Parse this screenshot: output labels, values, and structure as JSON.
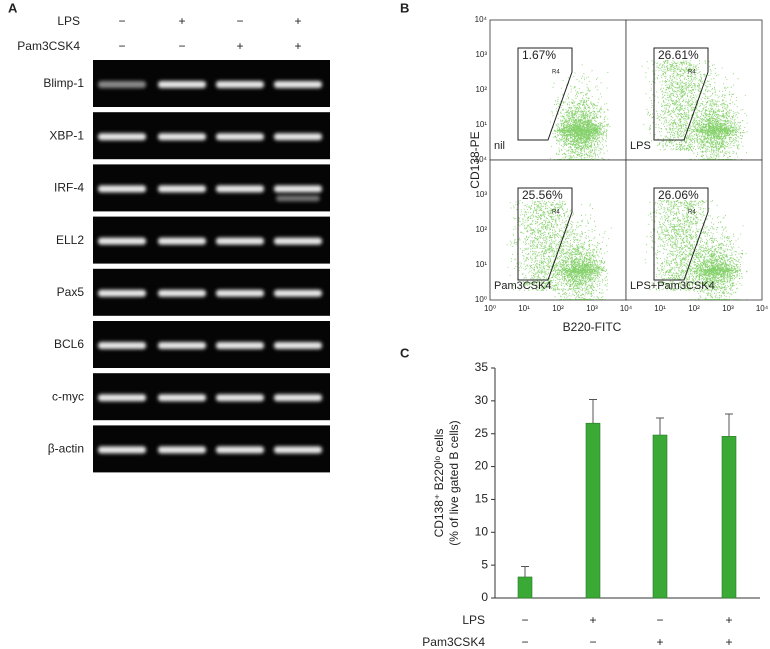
{
  "panel_a": {
    "label": "A",
    "conditions": [
      {
        "name": "LPS",
        "signs": [
          "−",
          "+",
          "−",
          "+"
        ]
      },
      {
        "name": "Pam3CSK4",
        "signs": [
          "−",
          "−",
          "+",
          "+"
        ]
      }
    ],
    "genes": [
      "Blimp-1",
      "XBP-1",
      "IRF-4",
      "ELL2",
      "Pax5",
      "BCL6",
      "c-myc",
      "β-actin"
    ]
  },
  "panel_b": {
    "label": "B",
    "y_label": "CD138-PE",
    "x_label": "B220-FITC",
    "axis_ticks": [
      "10⁰",
      "10¹",
      "10²",
      "10³",
      "10⁴"
    ],
    "gate_label": "R4",
    "plots": [
      {
        "name": "nil",
        "percent": "1.67%"
      },
      {
        "name": "LPS",
        "percent": "26.61%"
      },
      {
        "name": "Pam3CSK4",
        "percent": "25.56%"
      },
      {
        "name": "LPS+Pam3CSK4",
        "percent": "26.06%"
      }
    ]
  },
  "chart_data": {
    "type": "bar",
    "label": "C",
    "y_label": [
      "CD138⁺ B220ˡᵒ cells",
      "(% of live gated B cells)"
    ],
    "categories": [
      null,
      null,
      null,
      null
    ],
    "values": [
      3.2,
      26.6,
      24.8,
      24.6
    ],
    "errors": [
      1.6,
      3.6,
      2.6,
      3.4
    ],
    "color": "#3aa935",
    "ylim": [
      0,
      35
    ],
    "yticks": [
      0,
      5,
      10,
      15,
      20,
      25,
      30,
      35
    ],
    "conditions": [
      {
        "name": "LPS",
        "signs": [
          "−",
          "+",
          "−",
          "+"
        ]
      },
      {
        "name": "Pam3CSK4",
        "signs": [
          "−",
          "−",
          "+",
          "+"
        ]
      }
    ]
  }
}
